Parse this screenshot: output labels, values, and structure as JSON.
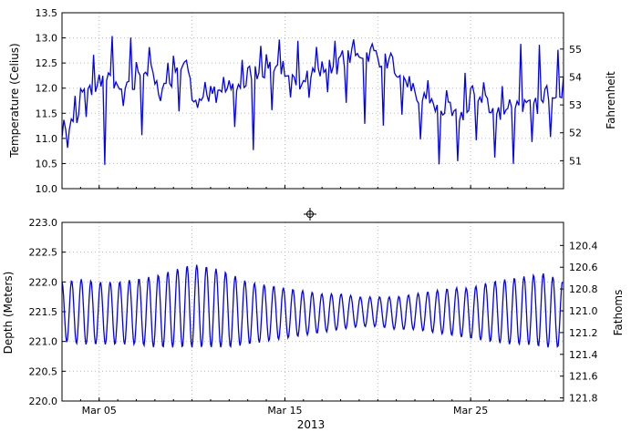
{
  "figure": {
    "xlabel": "2013",
    "x_ticks": [
      "Mar 05",
      "Mar 15",
      "Mar 25"
    ],
    "line_color": "#0000ff",
    "grid": true,
    "grid_style": "dotted"
  },
  "chart_data": [
    {
      "type": "line",
      "title": "",
      "ylabel": "Temperature (Celius)",
      "ylabel_right": "Fahrenheit",
      "ylim": [
        10.0,
        13.5
      ],
      "yticks": [
        "10.0",
        "10.5",
        "11.0",
        "11.5",
        "12.0",
        "12.5",
        "13.0",
        "13.5"
      ],
      "right_ticks": [
        "51",
        "52",
        "53",
        "54",
        "55"
      ],
      "x_range": [
        "2013-03-03",
        "2013-03-30"
      ],
      "series": [
        {
          "x": [
            "2013-03-03",
            "2013-03-04",
            "2013-03-05",
            "2013-03-06",
            "2013-03-07",
            "2013-03-08",
            "2013-03-09",
            "2013-03-10",
            "2013-03-11",
            "2013-03-12",
            "2013-03-13",
            "2013-03-14",
            "2013-03-15",
            "2013-03-16",
            "2013-03-17",
            "2013-03-18",
            "2013-03-19",
            "2013-03-20",
            "2013-03-21",
            "2013-03-22",
            "2013-03-23",
            "2013-03-24",
            "2013-03-25",
            "2013-03-26",
            "2013-03-27",
            "2013-03-28",
            "2013-03-29",
            "2013-03-30"
          ],
          "y": [
            11.2,
            11.9,
            12.2,
            11.9,
            12.4,
            12.0,
            12.5,
            11.8,
            11.9,
            12.0,
            12.3,
            12.5,
            12.1,
            12.3,
            12.4,
            12.6,
            12.7,
            12.6,
            12.1,
            11.8,
            11.6,
            11.4,
            11.9,
            11.5,
            11.7,
            11.6,
            11.9,
            12.2
          ],
          "y_min": [
            10.75,
            11.4,
            10.5,
            11.6,
            11.1,
            11.7,
            11.6,
            11.6,
            11.7,
            11.2,
            10.75,
            11.6,
            11.8,
            11.8,
            11.9,
            11.7,
            11.3,
            11.3,
            11.5,
            11.0,
            10.5,
            10.5,
            11.0,
            10.6,
            10.5,
            10.9,
            11.0,
            11.2
          ],
          "y_max": [
            11.7,
            12.6,
            13.1,
            12.9,
            12.9,
            12.4,
            12.7,
            12.1,
            12.2,
            12.5,
            12.8,
            13.05,
            12.9,
            12.8,
            12.9,
            12.95,
            12.9,
            12.8,
            12.3,
            12.2,
            12.0,
            12.2,
            12.2,
            12.0,
            12.9,
            12.8,
            12.7,
            12.75
          ]
        }
      ]
    },
    {
      "type": "line",
      "title": "",
      "ylabel": "Depth (Meters)",
      "ylabel_right": "Fathoms",
      "ylim": [
        220.0,
        223.0
      ],
      "yticks": [
        "220.0",
        "220.5",
        "221.0",
        "221.5",
        "222.0",
        "222.5",
        "223.0"
      ],
      "right_ticks": [
        "120.4",
        "120.6",
        "120.8",
        "121.0",
        "121.2",
        "121.4",
        "121.6",
        "121.8"
      ],
      "x_range": [
        "2013-03-03",
        "2013-03-30"
      ],
      "series": [
        {
          "x": [
            "2013-03-03",
            "2013-03-04",
            "2013-03-05",
            "2013-03-06",
            "2013-03-07",
            "2013-03-08",
            "2013-03-09",
            "2013-03-10",
            "2013-03-11",
            "2013-03-12",
            "2013-03-13",
            "2013-03-14",
            "2013-03-15",
            "2013-03-16",
            "2013-03-17",
            "2013-03-18",
            "2013-03-19",
            "2013-03-20",
            "2013-03-21",
            "2013-03-22",
            "2013-03-23",
            "2013-03-24",
            "2013-03-25",
            "2013-03-26",
            "2013-03-27",
            "2013-03-28",
            "2013-03-29",
            "2013-03-30"
          ],
          "y_max": [
            222.0,
            222.05,
            222.0,
            222.0,
            222.05,
            222.1,
            222.2,
            222.3,
            222.25,
            222.15,
            222.0,
            221.95,
            221.9,
            221.85,
            221.8,
            221.8,
            221.75,
            221.75,
            221.75,
            221.8,
            221.85,
            221.9,
            221.9,
            222.0,
            222.05,
            222.1,
            222.15,
            222.0
          ],
          "y_min": [
            221.0,
            220.95,
            220.95,
            220.95,
            220.95,
            220.9,
            220.9,
            220.9,
            220.9,
            220.9,
            220.95,
            221.0,
            221.05,
            221.1,
            221.15,
            221.2,
            221.25,
            221.25,
            221.2,
            221.2,
            221.15,
            221.1,
            221.05,
            221.0,
            220.95,
            220.95,
            220.9,
            220.9
          ]
        }
      ]
    }
  ]
}
